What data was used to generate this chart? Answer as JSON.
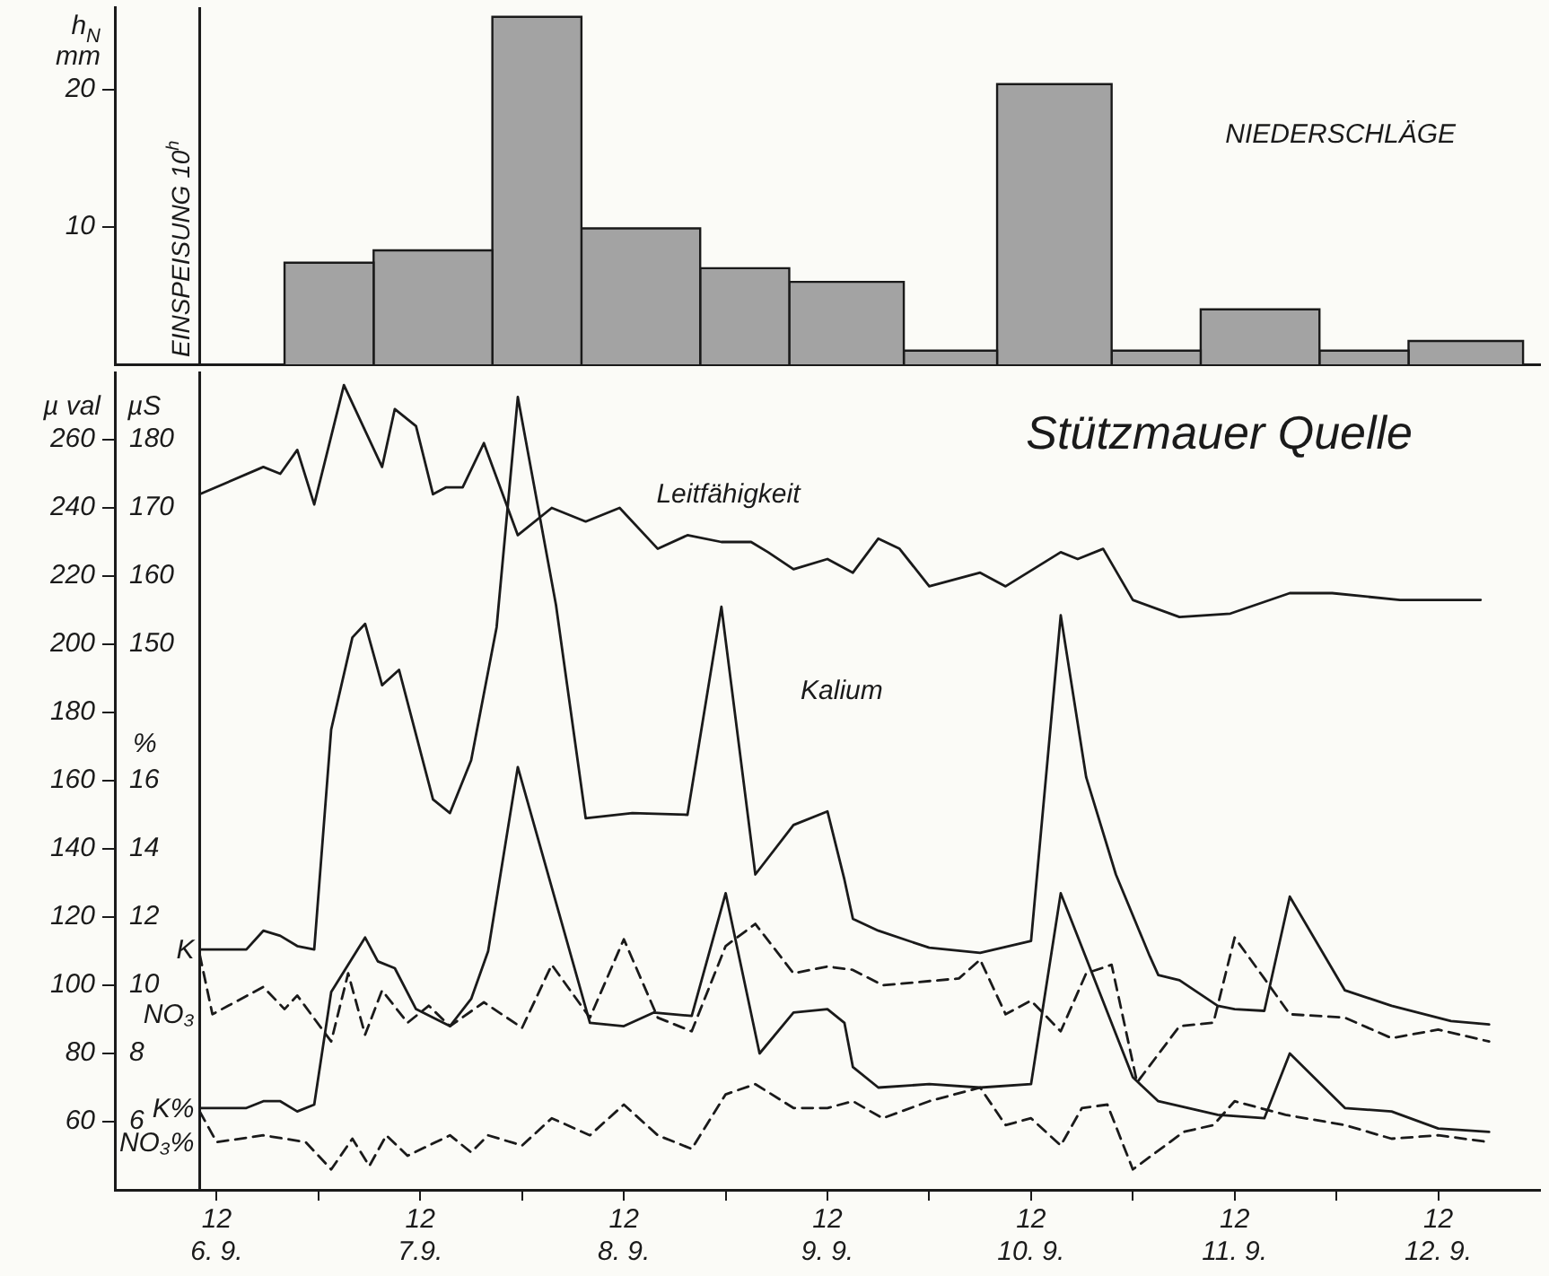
{
  "chart_data": [
    {
      "type": "histogram",
      "ylabel": "h$_{N}$\nmm",
      "bins": [
        "--09-06T20:00",
        "--09-07T06:30",
        "--09-07T20:30",
        "--09-08T07:00",
        "--09-08T21:00",
        "--09-09T07:30",
        "--09-09T21:00",
        "--09-10T08:00",
        "--09-10T21:30",
        "--09-11T08:00",
        "--09-11T22:00",
        "--09-12T08:30",
        "--09-12T22:00"
      ],
      "values": [
        7.4,
        8.3,
        25.3,
        9.9,
        7.0,
        6.0,
        1.0,
        20.4,
        1.0,
        4.0,
        1.0,
        1.7
      ],
      "color": "#a3a3a3",
      "xlim": [
        "--09-06T00:00",
        "--09-13T00:00"
      ],
      "ylim": [
        0,
        26
      ],
      "yticks": [
        10,
        20
      ],
      "tick_labels": "y",
      "ref_lines": [
        {
          "axis": "x",
          "value": "--09-06T10:00",
          "label": "EINSPEISUNG 10$^{h}$"
        }
      ],
      "annotations": [
        "NIEDERSCHLÄGE"
      ]
    },
    {
      "type": "line",
      "title": "Stützmauer Quelle",
      "ylabel": "µ val",
      "y2label": "µS",
      "y3label": "%",
      "xlim": [
        "--09-06T00:00",
        "--09-13T00:00"
      ],
      "xticks": [
        {
          "value": "--09-06T12:00",
          "label": "12\n6. 9."
        },
        {
          "value": "--09-07T00:00",
          "label": null
        },
        {
          "value": "--09-07T12:00",
          "label": "12\n7.9."
        },
        {
          "value": "--09-08T00:00",
          "label": null
        },
        {
          "value": "--09-08T12:00",
          "label": "12\n8. 9."
        },
        {
          "value": "--09-09T00:00",
          "label": null
        },
        {
          "value": "--09-09T12:00",
          "label": "12\n9. 9."
        },
        {
          "value": "--09-10T00:00",
          "label": null
        },
        {
          "value": "--09-10T12:00",
          "label": "12\n10. 9."
        },
        {
          "value": "--09-11T00:00",
          "label": null
        },
        {
          "value": "--09-11T12:00",
          "label": "12\n11. 9."
        },
        {
          "value": "--09-12T00:00",
          "label": null
        },
        {
          "value": "--09-12T12:00",
          "label": "12\n12. 9."
        }
      ],
      "ylim": [
        40,
        280
      ],
      "yticks": [
        60,
        80,
        100,
        120,
        140,
        160,
        180,
        200,
        220,
        240,
        260
      ],
      "y2lim": [
        70,
        190
      ],
      "y2ticks": [
        150,
        160,
        170,
        180
      ],
      "y3lim": [
        4,
        28
      ],
      "y3ticks": [
        6,
        8,
        10,
        12,
        14,
        16
      ],
      "ref_lines": [
        {
          "axis": "x",
          "value": "--09-06T10:00"
        }
      ],
      "annotations": [
        "Kalium"
      ],
      "series": [
        {
          "name": "Leitfähigkeit",
          "color": "#1a1a1a",
          "axis": "y2",
          "x": [
            "--09-06T10:00",
            "--09-06T17:30",
            "--09-06T19:30",
            "--09-06T21:30",
            "--09-06T23:30",
            "--09-07T03:00",
            "--09-07T07:30",
            "--09-07T09:00",
            "--09-07T11:30",
            "--09-07T13:30",
            "--09-07T15:00",
            "--09-07T17:00",
            "--09-07T19:30",
            "--09-07T23:30",
            "--09-08T03:30",
            "--09-08T07:30",
            "--09-08T11:30",
            "--09-08T16:00",
            "--09-08T19:30",
            "--09-08T23:30",
            "--09-09T03:00",
            "--09-09T05:00",
            "--09-09T08:00",
            "--09-09T12:00",
            "--09-09T15:00",
            "--09-09T18:00",
            "--09-09T20:30",
            "--09-10T00:00",
            "--09-10T06:00",
            "--09-10T09:00",
            "--09-10T15:30",
            "--09-10T17:30",
            "--09-10T20:30",
            "--09-11T00:00",
            "--09-11T05:30",
            "--09-11T11:30",
            "--09-11T18:30",
            "--09-11T23:30",
            "--09-12T07:30",
            "--09-12T17:00"
          ],
          "values": [
            172,
            176,
            175,
            178.5,
            170.5,
            188,
            176,
            184.5,
            182,
            172,
            173,
            173,
            179.5,
            166,
            170,
            168,
            170,
            164,
            166,
            165,
            165,
            163.5,
            161,
            162.5,
            160.5,
            165.5,
            164,
            158.5,
            160.5,
            158.5,
            163.5,
            162.5,
            164,
            156.5,
            154,
            154.5,
            157.5,
            157.5,
            156.5,
            156.5
          ]
        },
        {
          "name": "K",
          "color": "#1a1a1a",
          "x": [
            "--09-06T10:00",
            "--09-06T15:30",
            "--09-06T17:30",
            "--09-06T19:30",
            "--09-06T21:30",
            "--09-06T23:30",
            "--09-07T01:30",
            "--09-07T04:00",
            "--09-07T05:30",
            "--09-07T07:30",
            "--09-07T09:30",
            "--09-07T13:30",
            "--09-07T15:30",
            "--09-07T18:00",
            "--09-07T21:00",
            "--09-07T23:30",
            "--09-08T04:00",
            "--09-08T07:30",
            "--09-08T13:00",
            "--09-08T19:30",
            "--09-08T23:30",
            "--09-09T03:30",
            "--09-09T08:00",
            "--09-09T12:00",
            "--09-09T14:00",
            "--09-09T15:00",
            "--09-09T18:00",
            "--09-10T00:00",
            "--09-10T06:00",
            "--09-10T12:00",
            "--09-10T15:30",
            "--09-10T18:30",
            "--09-10T22:00",
            "--09-11T02:00",
            "--09-11T03:00",
            "--09-11T05:30",
            "--09-11T10:00",
            "--09-11T12:00",
            "--09-11T15:30",
            "--09-11T18:30",
            "--09-12T01:00",
            "--09-12T06:30",
            "--09-12T13:30",
            "--09-12T18:00"
          ],
          "values": [
            110.5,
            110.5,
            116,
            114.5,
            111.5,
            110.5,
            175,
            202,
            206,
            188,
            192.5,
            154.5,
            150.5,
            166,
            205,
            272.5,
            211.5,
            149,
            150.5,
            150,
            211,
            132.5,
            147,
            151,
            131,
            119.5,
            116,
            111,
            109.5,
            113,
            208.5,
            161,
            132.5,
            108.5,
            103,
            101.5,
            94,
            93,
            92.5,
            126,
            98.5,
            94,
            89.5,
            88.5
          ]
        },
        {
          "name": "NO₃",
          "color": "#1a1a1a",
          "line_style": "dashed",
          "x": [
            "--09-06T10:00",
            "--09-06T11:30",
            "--09-06T17:30",
            "--09-06T20:00",
            "--09-06T21:30",
            "--09-07T01:30",
            "--09-07T03:30",
            "--09-07T05:30",
            "--09-07T07:30",
            "--09-07T10:30",
            "--09-07T13:00",
            "--09-07T15:30",
            "--09-07T19:30",
            "--09-08T00:00",
            "--09-08T03:30",
            "--09-08T08:00",
            "--09-08T12:00",
            "--09-08T16:00",
            "--09-08T20:00",
            "--09-09T00:00",
            "--09-09T03:30",
            "--09-09T08:00",
            "--09-09T12:00",
            "--09-09T15:00",
            "--09-09T18:30",
            "--09-10T03:30",
            "--09-10T06:00",
            "--09-10T09:00",
            "--09-10T12:00",
            "--09-10T15:30",
            "--09-10T18:30",
            "--09-10T21:30",
            "--09-11T00:30",
            "--09-11T05:30",
            "--09-11T09:30",
            "--09-11T12:00",
            "--09-11T15:30",
            "--09-11T18:30",
            "--09-12T01:00",
            "--09-12T06:30",
            "--09-12T12:00",
            "--09-12T18:00"
          ],
          "values": [
            109,
            91.5,
            99.5,
            93,
            97,
            83.5,
            103.5,
            85.5,
            98.5,
            89,
            94,
            88,
            95,
            87.5,
            106,
            90.5,
            113.5,
            90.5,
            86.5,
            111.5,
            118,
            103.5,
            105.5,
            104.5,
            100,
            102,
            107.5,
            91.5,
            95.5,
            86.5,
            103.5,
            106,
            71.5,
            88,
            89,
            114,
            102,
            91.5,
            90.5,
            84.5,
            87,
            83.5
          ]
        },
        {
          "name": "K%",
          "color": "#1a1a1a",
          "axis": "y3",
          "x": [
            "--09-06T10:00",
            "--09-06T15:30",
            "--09-06T17:30",
            "--09-06T19:30",
            "--09-06T21:30",
            "--09-06T23:30",
            "--09-07T01:30",
            "--09-07T05:30",
            "--09-07T07:00",
            "--09-07T09:00",
            "--09-07T11:30",
            "--09-07T15:30",
            "--09-07T18:00",
            "--09-07T20:00",
            "--09-07T23:30",
            "--09-08T08:00",
            "--09-08T12:00",
            "--09-08T15:30",
            "--09-08T20:00",
            "--09-09T00:00",
            "--09-09T04:00",
            "--09-09T08:00",
            "--09-09T12:00",
            "--09-09T14:00",
            "--09-09T15:00",
            "--09-09T18:00",
            "--09-10T00:00",
            "--09-10T06:00",
            "--09-10T12:00",
            "--09-10T15:30",
            "--09-11T00:00",
            "--09-11T03:00",
            "--09-11T10:00",
            "--09-11T15:30",
            "--09-11T18:30",
            "--09-12T01:00",
            "--09-12T06:30",
            "--09-12T12:00",
            "--09-12T18:00"
          ],
          "values": [
            6.4,
            6.4,
            6.6,
            6.6,
            6.3,
            6.5,
            9.8,
            11.4,
            10.7,
            10.5,
            9.3,
            8.8,
            9.6,
            11,
            16.4,
            8.9,
            8.8,
            9.2,
            9.1,
            12.7,
            8.0,
            9.2,
            9.3,
            8.9,
            7.6,
            7.0,
            7.1,
            7.0,
            7.1,
            12.7,
            7.3,
            6.6,
            6.2,
            6.1,
            8.0,
            6.4,
            6.3,
            5.8,
            5.7
          ]
        },
        {
          "name": "NO₃%",
          "color": "#1a1a1a",
          "axis": "y3",
          "line_style": "dashed",
          "x": [
            "--09-06T10:00",
            "--09-06T12:00",
            "--09-06T17:30",
            "--09-06T20:00",
            "--09-06T22:30",
            "--09-07T01:30",
            "--09-07T04:00",
            "--09-07T06:00",
            "--09-07T08:00",
            "--09-07T10:30",
            "--09-07T15:30",
            "--09-07T18:00",
            "--09-07T20:00",
            "--09-08T00:00",
            "--09-08T03:30",
            "--09-08T08:00",
            "--09-08T12:00",
            "--09-08T16:00",
            "--09-08T20:00",
            "--09-09T00:00",
            "--09-09T03:30",
            "--09-09T08:00",
            "--09-09T12:00",
            "--09-09T15:00",
            "--09-09T18:30",
            "--09-10T00:00",
            "--09-10T06:00",
            "--09-10T09:00",
            "--09-10T12:00",
            "--09-10T15:30",
            "--09-10T18:00",
            "--09-10T21:00",
            "--09-11T00:00",
            "--09-11T06:00",
            "--09-11T09:30",
            "--09-11T12:00",
            "--09-11T18:00",
            "--09-12T01:00",
            "--09-12T06:30",
            "--09-12T12:00",
            "--09-12T18:00"
          ],
          "values": [
            6.3,
            5.4,
            5.6,
            5.5,
            5.4,
            4.6,
            5.5,
            4.7,
            5.6,
            5.0,
            5.6,
            5.1,
            5.6,
            5.3,
            6.1,
            5.6,
            6.5,
            5.6,
            5.2,
            6.8,
            7.1,
            6.4,
            6.4,
            6.6,
            6.1,
            6.6,
            7.0,
            5.9,
            6.1,
            5.3,
            6.4,
            6.5,
            4.6,
            5.7,
            5.9,
            6.6,
            6.2,
            5.9,
            5.5,
            5.6,
            5.4
          ]
        }
      ]
    }
  ]
}
